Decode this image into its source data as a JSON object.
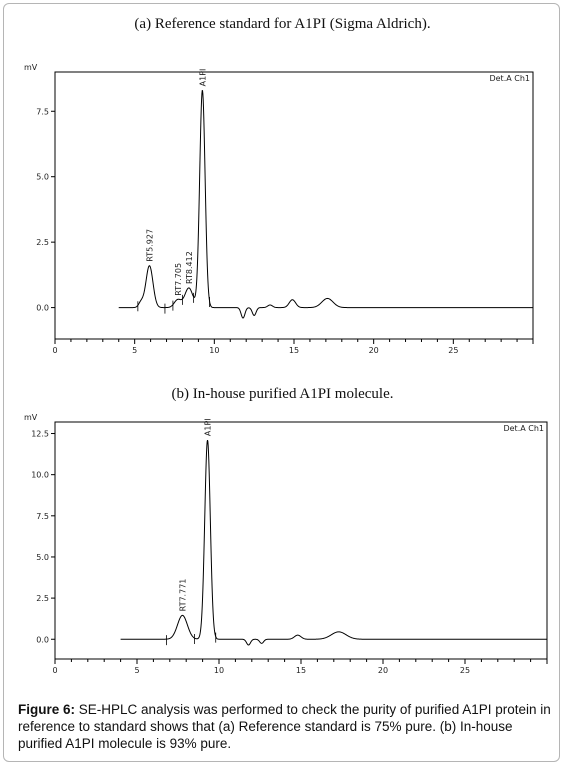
{
  "panels": {
    "a": {
      "title": "(a) Reference standard for A1PI (Sigma Aldrich)."
    },
    "b": {
      "title": "(b) In-house purified A1PI molecule."
    }
  },
  "caption": {
    "label": "Figure 6:",
    "text": "SE-HPLC analysis was performed to check the purity of purified A1PI protein in reference to standard shows that (a) Reference standard is 75% pure. (b) In-house purified A1PI molecule is 93% pure."
  },
  "chart_data": [
    {
      "type": "line",
      "title": "(a) Reference standard for A1PI (Sigma Aldrich).",
      "ylabel": "mV",
      "detector": "Det.A Ch1",
      "xlim": [
        0,
        30
      ],
      "ylim": [
        -1.2,
        9.0
      ],
      "xticks": [
        0,
        5,
        10,
        15,
        20,
        25
      ],
      "yticks": [
        0.0,
        2.5,
        5.0,
        7.5
      ],
      "ytick_labels": [
        "0.0",
        "2.5",
        "5.0",
        "7.5"
      ],
      "baseline": 0.0,
      "peaks": [
        {
          "rt": 5.4,
          "height": 0.2,
          "width": 0.15
        },
        {
          "rt": 5.927,
          "height": 1.6,
          "width": 0.22,
          "label": "RT5.927"
        },
        {
          "rt": 7.705,
          "height": 0.3,
          "width": 0.22,
          "label": "RT7.705"
        },
        {
          "rt": 8.4,
          "height": 0.75,
          "width": 0.25,
          "label": "RT8.412"
        },
        {
          "rt": 9.25,
          "height": 8.3,
          "width": 0.17,
          "label": "A1PI"
        },
        {
          "rt": 11.8,
          "height": -0.4,
          "width": 0.12
        },
        {
          "rt": 12.5,
          "height": -0.3,
          "width": 0.12
        },
        {
          "rt": 13.5,
          "height": 0.1,
          "width": 0.15
        },
        {
          "rt": 14.9,
          "height": 0.3,
          "width": 0.2
        },
        {
          "rt": 17.1,
          "height": 0.35,
          "width": 0.35
        }
      ],
      "integration_marks": [
        5.2,
        6.9,
        7.4,
        8.0,
        8.7,
        9.7
      ]
    },
    {
      "type": "line",
      "title": "(b) In-house purified A1PI molecule.",
      "ylabel": "mV",
      "detector": "Det.A Ch1",
      "xlim": [
        0,
        30
      ],
      "ylim": [
        -1.2,
        13.2
      ],
      "xticks": [
        0,
        5,
        10,
        15,
        20,
        25
      ],
      "yticks": [
        0.0,
        2.5,
        5.0,
        7.5,
        10.0,
        12.5
      ],
      "ytick_labels": [
        "0.0",
        "2.5",
        "5.0",
        "7.5",
        "10.0",
        "12.5"
      ],
      "baseline": 0.0,
      "peaks": [
        {
          "rt": 7.771,
          "height": 1.45,
          "width": 0.3,
          "label": "RT7.771"
        },
        {
          "rt": 9.3,
          "height": 12.1,
          "width": 0.17,
          "label": "A1PI"
        },
        {
          "rt": 11.8,
          "height": -0.35,
          "width": 0.12
        },
        {
          "rt": 12.6,
          "height": -0.25,
          "width": 0.12
        },
        {
          "rt": 14.8,
          "height": 0.25,
          "width": 0.2
        },
        {
          "rt": 17.3,
          "height": 0.45,
          "width": 0.45
        }
      ],
      "integration_marks": [
        6.8,
        8.5,
        9.8
      ]
    }
  ]
}
